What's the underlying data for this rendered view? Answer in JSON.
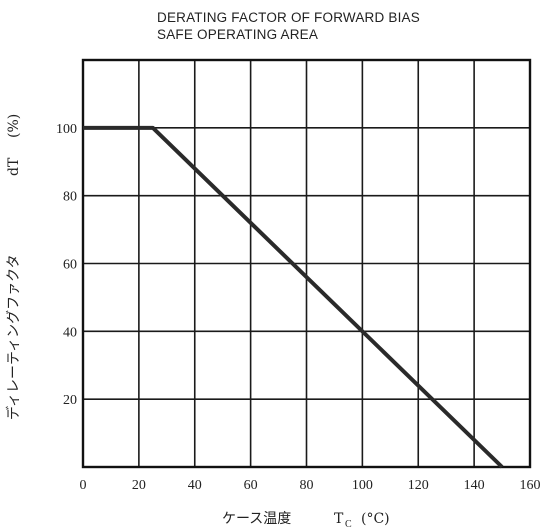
{
  "chart_data": {
    "type": "line",
    "title_lines": [
      "DERATING FACTOR OF FORWARD BIAS",
      "SAFE OPERATING AREA"
    ],
    "xlabel_text": "ケース温度",
    "xlabel_symbol": "T",
    "xlabel_subscript": "C",
    "xlabel_unit": "(°C)",
    "ylabel_text": "ディレーティングファクタ",
    "ylabel_symbol": "dT",
    "ylabel_unit": "(%)",
    "xlim": [
      0,
      160
    ],
    "ylim": [
      0,
      120
    ],
    "xticks": [
      0,
      20,
      40,
      60,
      80,
      100,
      120,
      140,
      160
    ],
    "yticks": [
      20,
      40,
      60,
      80,
      100
    ],
    "grid": true,
    "series": [
      {
        "x": [
          0,
          25,
          150
        ],
        "y": [
          100,
          100,
          0
        ]
      }
    ],
    "colors": {
      "line": "#2a2a2a",
      "grid": "#1a1a1a",
      "frame": "#111111"
    }
  }
}
